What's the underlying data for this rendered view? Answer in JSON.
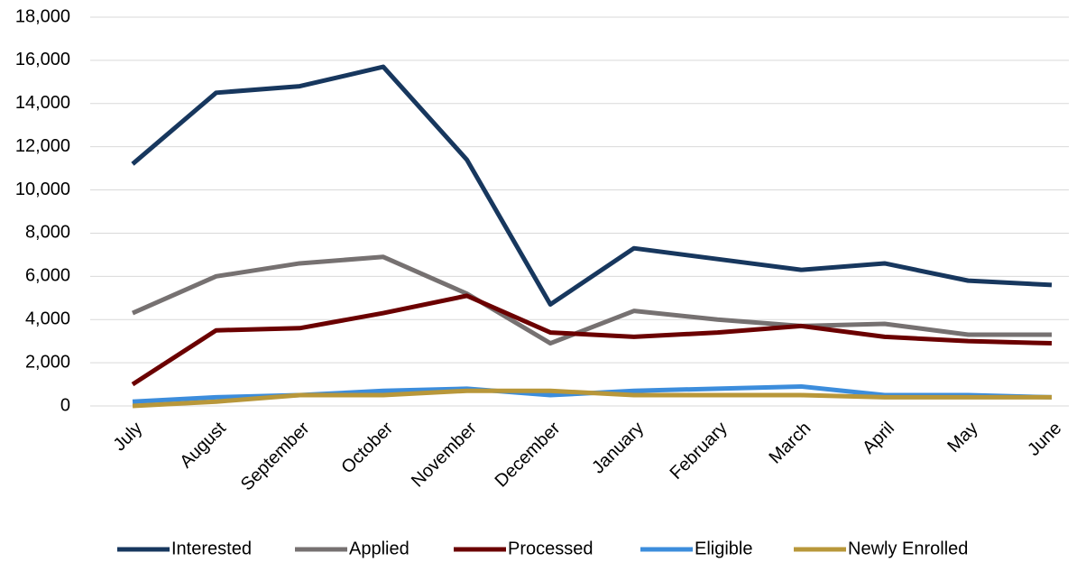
{
  "chart_data": {
    "type": "line",
    "categories": [
      "July",
      "August",
      "September",
      "October",
      "November",
      "December",
      "January",
      "February",
      "March",
      "April",
      "May",
      "June"
    ],
    "series": [
      {
        "name": "Interested",
        "color": "#17375e",
        "values": [
          11200,
          14500,
          14800,
          15700,
          11400,
          4700,
          7300,
          6800,
          6300,
          6600,
          5800,
          5600
        ]
      },
      {
        "name": "Applied",
        "color": "#767171",
        "values": [
          4300,
          6000,
          6600,
          6900,
          5200,
          2900,
          4400,
          4000,
          3700,
          3800,
          3300,
          3300
        ]
      },
      {
        "name": "Processed",
        "color": "#6b0000",
        "values": [
          1000,
          3500,
          3600,
          4300,
          5100,
          3400,
          3200,
          3400,
          3700,
          3200,
          3000,
          2900
        ]
      },
      {
        "name": "Eligible",
        "color": "#3c8ddc",
        "values": [
          200,
          400,
          500,
          700,
          800,
          500,
          700,
          800,
          900,
          500,
          500,
          400
        ]
      },
      {
        "name": "Newly Enrolled",
        "color": "#b8973a",
        "values": [
          0,
          200,
          500,
          500,
          700,
          700,
          500,
          500,
          500,
          400,
          400,
          400
        ]
      }
    ],
    "ylim": [
      0,
      18000
    ],
    "yticks": [
      0,
      {
        "value": 2000,
        "label": "2,000"
      },
      {
        "value": 4000,
        "label": "4,000"
      },
      {
        "value": 6000,
        "label": "6,000"
      },
      {
        "value": 8000,
        "label": "8,000"
      },
      {
        "value": 10000,
        "label": "10,000"
      },
      {
        "value": 12000,
        "label": "12,000"
      },
      {
        "value": 14000,
        "label": "14,000"
      },
      {
        "value": 16000,
        "label": "16,000"
      },
      {
        "value": 18000,
        "label": "18,000"
      }
    ],
    "grid": true,
    "legend": "bottom"
  }
}
